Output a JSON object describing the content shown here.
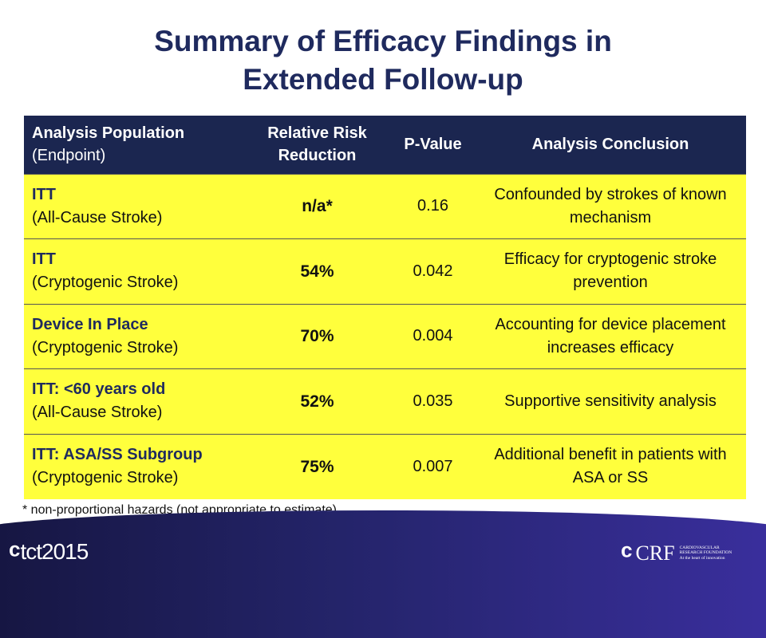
{
  "title": {
    "line1": "Summary of Efficacy Findings in",
    "line2": "Extended Follow-up"
  },
  "table": {
    "headers": {
      "population": "Analysis Population",
      "endpoint": "(Endpoint)",
      "rrr": "Relative Risk Reduction",
      "pvalue": "P-Value",
      "conclusion": "Analysis Conclusion"
    },
    "rows": [
      {
        "population": "ITT",
        "endpoint": "(All-Cause Stroke)",
        "rrr": "n/a*",
        "pvalue": "0.16",
        "conclusion": "Confounded by strokes of known mechanism"
      },
      {
        "population": "ITT",
        "endpoint": "(Cryptogenic Stroke)",
        "rrr": "54%",
        "pvalue": "0.042",
        "conclusion": "Efficacy for cryptogenic stroke prevention"
      },
      {
        "population": "Device In Place",
        "endpoint": "(Cryptogenic Stroke)",
        "rrr": "70%",
        "pvalue": "0.004",
        "conclusion": "Accounting for device placement increases efficacy"
      },
      {
        "population": "ITT: <60 years old",
        "endpoint": "(All-Cause Stroke)",
        "rrr": "52%",
        "pvalue": "0.035",
        "conclusion": "Supportive sensitivity analysis"
      },
      {
        "population": "ITT: ASA/SS Subgroup",
        "endpoint": "(Cryptogenic Stroke)",
        "rrr": "75%",
        "pvalue": "0.007",
        "conclusion": "Additional benefit in patients with ASA or SS"
      }
    ]
  },
  "footnote": "* non-proportional hazards (not appropriate to estimate)",
  "footer": {
    "left_logo": "tct2015",
    "right_logo": "CRF",
    "right_logo_text": [
      "CARDIOVASCULAR",
      "RESEARCH FOUNDATION",
      "At the heart of innovation"
    ]
  }
}
